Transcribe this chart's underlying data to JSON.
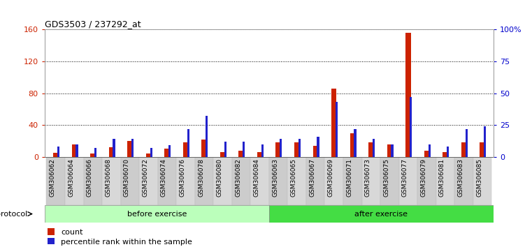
{
  "title": "GDS3503 / 237292_at",
  "categories": [
    "GSM306062",
    "GSM306064",
    "GSM306066",
    "GSM306068",
    "GSM306070",
    "GSM306072",
    "GSM306074",
    "GSM306076",
    "GSM306078",
    "GSM306080",
    "GSM306082",
    "GSM306084",
    "GSM306063",
    "GSM306065",
    "GSM306067",
    "GSM306069",
    "GSM306071",
    "GSM306073",
    "GSM306075",
    "GSM306077",
    "GSM306079",
    "GSM306081",
    "GSM306083",
    "GSM306085"
  ],
  "count_values": [
    5,
    16,
    4,
    12,
    20,
    4,
    10,
    18,
    22,
    6,
    8,
    6,
    18,
    18,
    14,
    86,
    30,
    18,
    16,
    156,
    8,
    6,
    18,
    18
  ],
  "percentile_values": [
    8,
    10,
    7,
    14,
    14,
    7,
    9,
    22,
    32,
    12,
    12,
    10,
    14,
    14,
    16,
    43,
    22,
    14,
    10,
    47,
    10,
    8,
    22,
    24
  ],
  "before_exercise_count": 12,
  "after_exercise_count": 12,
  "ylim_left": [
    0,
    160
  ],
  "ylim_right": [
    0,
    100
  ],
  "yticks_left": [
    0,
    40,
    80,
    120,
    160
  ],
  "yticks_right": [
    0,
    25,
    50,
    75,
    100
  ],
  "ytick_labels_right": [
    "0",
    "25",
    "50",
    "75",
    "100%"
  ],
  "bar_color_count": "#cc2200",
  "bar_color_percentile": "#2222cc",
  "before_color": "#bbffbb",
  "after_color": "#44dd44",
  "protocol_label": "protocol",
  "before_label": "before exercise",
  "after_label": "after exercise",
  "legend_count": "count",
  "legend_percentile": "percentile rank within the sample",
  "left_tick_color": "#cc2200",
  "right_tick_color": "#0000cc",
  "cell_colors": [
    "#cccccc",
    "#d8d8d8"
  ]
}
